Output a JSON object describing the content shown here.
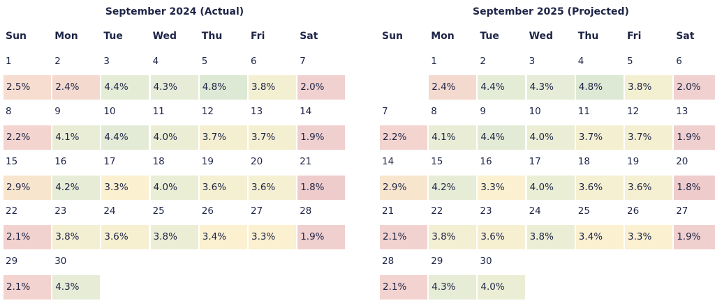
{
  "chart_data": [
    {
      "type": "table",
      "title": "September 2024 (Actual)",
      "weekdays": [
        "Sun",
        "Mon",
        "Tue",
        "Wed",
        "Thu",
        "Fri",
        "Sat"
      ],
      "start_weekday_index": 0,
      "days": [
        {
          "date": "1",
          "value": "2.5%",
          "color": "#f6ddd0"
        },
        {
          "date": "2",
          "value": "2.4%",
          "color": "#f4d9cf"
        },
        {
          "date": "3",
          "value": "4.4%",
          "color": "#e5ecd6"
        },
        {
          "date": "4",
          "value": "4.3%",
          "color": "#e6ecd7"
        },
        {
          "date": "5",
          "value": "4.8%",
          "color": "#dde9d4"
        },
        {
          "date": "6",
          "value": "3.8%",
          "color": "#f3efd1"
        },
        {
          "date": "7",
          "value": "2.0%",
          "color": "#f0d1d0"
        },
        {
          "date": "8",
          "value": "2.2%",
          "color": "#f3d4cf"
        },
        {
          "date": "9",
          "value": "4.1%",
          "color": "#e9edd5"
        },
        {
          "date": "10",
          "value": "4.4%",
          "color": "#e3ebd6"
        },
        {
          "date": "11",
          "value": "4.0%",
          "color": "#ebeed4"
        },
        {
          "date": "12",
          "value": "3.7%",
          "color": "#f4efd0"
        },
        {
          "date": "13",
          "value": "3.7%",
          "color": "#f4efd0"
        },
        {
          "date": "14",
          "value": "1.9%",
          "color": "#f0cfcf"
        },
        {
          "date": "15",
          "value": "2.9%",
          "color": "#f8e5ce"
        },
        {
          "date": "16",
          "value": "4.2%",
          "color": "#e7ecd6"
        },
        {
          "date": "17",
          "value": "3.3%",
          "color": "#fbf1d0"
        },
        {
          "date": "18",
          "value": "4.0%",
          "color": "#eaeed5"
        },
        {
          "date": "19",
          "value": "3.6%",
          "color": "#f5f0d1"
        },
        {
          "date": "20",
          "value": "3.6%",
          "color": "#f5f0d1"
        },
        {
          "date": "21",
          "value": "1.8%",
          "color": "#efcccc"
        },
        {
          "date": "22",
          "value": "2.1%",
          "color": "#f2d2cf"
        },
        {
          "date": "23",
          "value": "3.8%",
          "color": "#f2efd3"
        },
        {
          "date": "24",
          "value": "3.6%",
          "color": "#f6f0d1"
        },
        {
          "date": "25",
          "value": "3.8%",
          "color": "#ecedd5"
        },
        {
          "date": "26",
          "value": "3.4%",
          "color": "#fbf0d0"
        },
        {
          "date": "27",
          "value": "3.3%",
          "color": "#fbf0cf"
        },
        {
          "date": "28",
          "value": "1.9%",
          "color": "#f0cfcf"
        },
        {
          "date": "29",
          "value": "2.1%",
          "color": "#f3d3cf"
        },
        {
          "date": "30",
          "value": "4.3%",
          "color": "#e6ecd6"
        }
      ]
    },
    {
      "type": "table",
      "title": "September 2025 (Projected)",
      "weekdays": [
        "Sun",
        "Mon",
        "Tue",
        "Wed",
        "Thu",
        "Fri",
        "Sat"
      ],
      "start_weekday_index": 1,
      "days": [
        {
          "date": "1",
          "value": "2.4%",
          "color": "#f4d9cf"
        },
        {
          "date": "2",
          "value": "4.4%",
          "color": "#e5ecd6"
        },
        {
          "date": "3",
          "value": "4.3%",
          "color": "#e6ecd7"
        },
        {
          "date": "4",
          "value": "4.8%",
          "color": "#dde9d4"
        },
        {
          "date": "5",
          "value": "3.8%",
          "color": "#f3efd1"
        },
        {
          "date": "6",
          "value": "2.0%",
          "color": "#f0d1d0"
        },
        {
          "date": "7",
          "value": "2.2%",
          "color": "#f3d4cf"
        },
        {
          "date": "8",
          "value": "4.1%",
          "color": "#e9edd5"
        },
        {
          "date": "9",
          "value": "4.4%",
          "color": "#e3ebd6"
        },
        {
          "date": "10",
          "value": "4.0%",
          "color": "#ebeed4"
        },
        {
          "date": "11",
          "value": "3.7%",
          "color": "#f4efd0"
        },
        {
          "date": "12",
          "value": "3.7%",
          "color": "#f4efd0"
        },
        {
          "date": "13",
          "value": "1.9%",
          "color": "#f0cfcf"
        },
        {
          "date": "14",
          "value": "2.9%",
          "color": "#f8e5ce"
        },
        {
          "date": "15",
          "value": "4.2%",
          "color": "#e7ecd6"
        },
        {
          "date": "16",
          "value": "3.3%",
          "color": "#fbf1d0"
        },
        {
          "date": "17",
          "value": "4.0%",
          "color": "#eaeed5"
        },
        {
          "date": "18",
          "value": "3.6%",
          "color": "#f5f0d1"
        },
        {
          "date": "19",
          "value": "3.6%",
          "color": "#f5f0d1"
        },
        {
          "date": "20",
          "value": "1.8%",
          "color": "#efcccc"
        },
        {
          "date": "21",
          "value": "2.1%",
          "color": "#f2d2cf"
        },
        {
          "date": "22",
          "value": "3.8%",
          "color": "#f2efd3"
        },
        {
          "date": "23",
          "value": "3.6%",
          "color": "#f6f0d1"
        },
        {
          "date": "24",
          "value": "3.8%",
          "color": "#ecedd5"
        },
        {
          "date": "25",
          "value": "3.4%",
          "color": "#fbf0d0"
        },
        {
          "date": "26",
          "value": "3.3%",
          "color": "#fbf0cf"
        },
        {
          "date": "27",
          "value": "1.9%",
          "color": "#f0cfcf"
        },
        {
          "date": "28",
          "value": "2.1%",
          "color": "#f3d3cf"
        },
        {
          "date": "29",
          "value": "4.3%",
          "color": "#e6ecd6"
        },
        {
          "date": "30",
          "value": "4.0%",
          "color": "#ebeed4"
        }
      ]
    }
  ],
  "colors": {
    "text": "#1e2547",
    "low": "#efcccc",
    "mid": "#fbf1d0",
    "high": "#dde9d4"
  }
}
